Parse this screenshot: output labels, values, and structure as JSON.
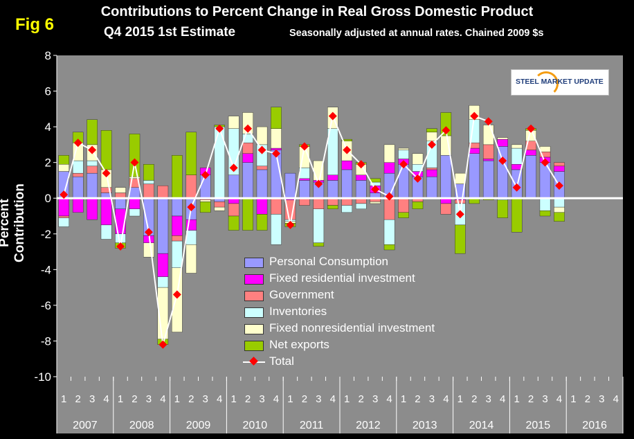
{
  "header": {
    "fig_label": "Fig 6",
    "title_line1": "Contributions to Percent Change in Real Gross Domestic Product",
    "title_line2": "Q4 2015 1st  Estimate",
    "subtitle": "Seasonally adjusted at annual rates. Chained 2009 $s",
    "logo_text": "STEEL MARKET UPDATE"
  },
  "colors": {
    "background": "#000000",
    "plot_area": "#8c8c8c",
    "Personal Consumption": "#9999ff",
    "Fixed residential investment": "#ff00ff",
    "Government": "#ff8080",
    "Inventories": "#ccffff",
    "Fixed nonresidential investment": "#ffffcc",
    "Net exports": "#99cc00",
    "Total": "#ff0000"
  },
  "chart_data": {
    "type": "bar",
    "stacked": true,
    "ylabel": "Percent Contribution",
    "ylim": [
      -10,
      8
    ],
    "yticks": [
      -10,
      -8,
      -6,
      -4,
      -2,
      0,
      2,
      4,
      6,
      8
    ],
    "grid": false,
    "legend_position": "bottom-center",
    "quarter_labels": [
      "1",
      "2",
      "3",
      "4"
    ],
    "years": [
      "2007",
      "2008",
      "2009",
      "2010",
      "2011",
      "2012",
      "2013",
      "2014",
      "2015",
      "2016"
    ],
    "categories": [
      "2007 Q1",
      "2007 Q2",
      "2007 Q3",
      "2007 Q4",
      "2008 Q1",
      "2008 Q2",
      "2008 Q3",
      "2008 Q4",
      "2009 Q1",
      "2009 Q2",
      "2009 Q3",
      "2009 Q4",
      "2010 Q1",
      "2010 Q2",
      "2010 Q3",
      "2010 Q4",
      "2011 Q1",
      "2011 Q2",
      "2011 Q3",
      "2011 Q4",
      "2012 Q1",
      "2012 Q2",
      "2012 Q3",
      "2012 Q4",
      "2013 Q1",
      "2013 Q2",
      "2013 Q3",
      "2013 Q4",
      "2014 Q1",
      "2014 Q2",
      "2014 Q3",
      "2014 Q4",
      "2015 Q1",
      "2015 Q2",
      "2015 Q3",
      "2015 Q4",
      "2016 Q1",
      "2016 Q2",
      "2016 Q3",
      "2016 Q4"
    ],
    "series": [
      {
        "name": "Personal Consumption",
        "values": [
          1.5,
          1.2,
          1.4,
          0.3,
          -0.6,
          0.6,
          -2.1,
          -3.1,
          -1.0,
          -1.2,
          1.3,
          -0.2,
          1.3,
          2.0,
          1.6,
          2.7,
          1.4,
          1.0,
          0.9,
          1.0,
          1.6,
          1.0,
          0.3,
          1.4,
          1.9,
          1.2,
          1.2,
          2.4,
          0.8,
          2.5,
          2.1,
          2.9,
          1.6,
          2.4,
          2.0,
          1.5,
          0,
          0,
          0,
          0
        ]
      },
      {
        "name": "Fixed residential investment",
        "values": [
          -1.0,
          -0.8,
          -1.2,
          -1.5,
          -1.4,
          -0.6,
          -0.4,
          -1.3,
          -1.1,
          -0.6,
          0.4,
          0.0,
          -0.3,
          0.5,
          -0.9,
          0.1,
          -0.1,
          0.1,
          0.1,
          0.3,
          0.5,
          0.3,
          0.4,
          0.6,
          0.3,
          0.3,
          0.4,
          -0.3,
          -0.1,
          0.3,
          0.1,
          0.4,
          0.3,
          0.3,
          0.3,
          0.3,
          0,
          0,
          0,
          0
        ]
      },
      {
        "name": "Government",
        "values": [
          -0.1,
          0.2,
          0.4,
          0.3,
          0.3,
          0.5,
          0.8,
          0.7,
          -0.3,
          1.3,
          -0.1,
          -0.3,
          -0.7,
          0.6,
          0.2,
          -0.9,
          -1.1,
          -0.4,
          -0.6,
          -0.4,
          -0.4,
          -0.3,
          -0.2,
          -1.2,
          -0.8,
          -0.2,
          0.1,
          -0.6,
          -0.2,
          0.3,
          0.8,
          0.0,
          0.0,
          0.5,
          0.3,
          0.2,
          0,
          0,
          0,
          0
        ]
      },
      {
        "name": "Inventories",
        "values": [
          -0.5,
          0.7,
          0.3,
          -0.8,
          -0.5,
          -0.4,
          0.2,
          -0.6,
          -1.5,
          -0.8,
          0.0,
          4.0,
          2.6,
          0.5,
          1.2,
          -1.7,
          -0.1,
          0.6,
          -1.9,
          2.6,
          -0.4,
          -0.3,
          0.2,
          -1.4,
          0.5,
          0.4,
          1.5,
          0.0,
          -1.2,
          1.3,
          0.0,
          -0.1,
          0.9,
          0.0,
          -0.7,
          -0.5,
          0,
          0,
          0,
          0
        ]
      },
      {
        "name": "Fixed nonresidential investment",
        "values": [
          0.4,
          1.0,
          0.9,
          1.0,
          0.3,
          0.1,
          -0.8,
          -2.9,
          -3.6,
          -1.6,
          -0.1,
          -0.2,
          0.7,
          1.2,
          1.0,
          1.1,
          -0.1,
          1.2,
          1.1,
          1.2,
          1.1,
          0.6,
          -0.1,
          1.0,
          0.1,
          0.6,
          0.5,
          1.1,
          0.6,
          0.8,
          1.1,
          0.1,
          0.2,
          0.6,
          0.3,
          -0.3,
          0,
          0,
          0,
          0
        ]
      },
      {
        "name": "Net exports",
        "values": [
          0.5,
          0.6,
          1.4,
          2.2,
          -0.3,
          2.4,
          0.9,
          -0.3,
          2.4,
          2.4,
          -0.6,
          0.1,
          -0.8,
          -1.8,
          -0.9,
          1.2,
          -0.2,
          0.1,
          -0.2,
          -0.2,
          0.1,
          0.1,
          0.2,
          -0.3,
          -0.3,
          -0.4,
          0.2,
          1.3,
          -1.6,
          -0.3,
          -0.1,
          -1.0,
          -1.9,
          0.1,
          -0.3,
          -0.5,
          0,
          0,
          0,
          0
        ]
      }
    ],
    "total": {
      "name": "Total",
      "values": [
        0.2,
        3.1,
        2.7,
        1.4,
        -2.7,
        2.0,
        -1.9,
        -8.2,
        -5.4,
        -0.5,
        1.3,
        3.9,
        1.7,
        3.9,
        2.7,
        2.5,
        -1.5,
        2.9,
        0.8,
        4.6,
        2.7,
        1.9,
        0.5,
        0.1,
        1.9,
        1.1,
        3.0,
        3.8,
        -0.9,
        4.6,
        4.3,
        2.1,
        0.6,
        3.9,
        2.0,
        0.7
      ]
    }
  }
}
